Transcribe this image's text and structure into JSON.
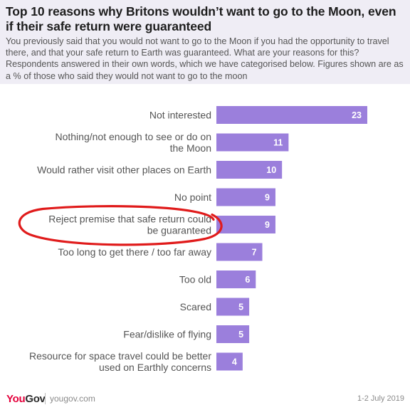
{
  "header": {
    "title": "Top 10 reasons why Britons wouldn’t want to go to the Moon, even if their safe return were guaranteed",
    "subtitle": "You previously said that you would not want to go to the Moon if you had the opportunity to travel there, and that your safe return to Earth was guaranteed. What are your reasons for this? Respondents answered in their own words, which we have categorised below. Figures shown are as a % of those who said they would not want to go to the moon"
  },
  "footer": {
    "logo_you": "You",
    "logo_gov": "Gov",
    "site": "yougov.com",
    "date": "1-2 July 2019"
  },
  "colors": {
    "bar": "#9b7fdc",
    "bar_label": "#ffffff",
    "category_label": "#555555",
    "highlight_circle": "#e01b1b",
    "header_bg": "#efedf5",
    "brand_red": "#e4003b"
  },
  "chart_data": {
    "type": "bar",
    "orientation": "horizontal",
    "categories": [
      "Not interested",
      "Nothing/not enough to see or do on the Moon",
      "Would rather visit other places on Earth",
      "No point",
      "Reject premise that safe return could be guaranteed",
      "Too long to get there / too far away",
      "Too old",
      "Scared",
      "Fear/dislike of flying",
      "Resource for space travel could be better used on Earthly concerns"
    ],
    "category_lines": [
      [
        "Not interested"
      ],
      [
        "Nothing/not enough to see or do on",
        "the Moon"
      ],
      [
        "Would rather visit other places on Earth"
      ],
      [
        "No point"
      ],
      [
        "Reject premise that safe return could",
        "be guaranteed"
      ],
      [
        "Too long to get there / too far away"
      ],
      [
        "Too old"
      ],
      [
        "Scared"
      ],
      [
        "Fear/dislike of flying"
      ],
      [
        "Resource for space travel could be better",
        "used on Earthly concerns"
      ]
    ],
    "values": [
      23,
      11,
      10,
      9,
      9,
      7,
      6,
      5,
      5,
      4
    ],
    "xlim": [
      0,
      25
    ],
    "highlighted_category": "Reject premise that safe return could be guaranteed",
    "grid": false,
    "legend": "none"
  }
}
